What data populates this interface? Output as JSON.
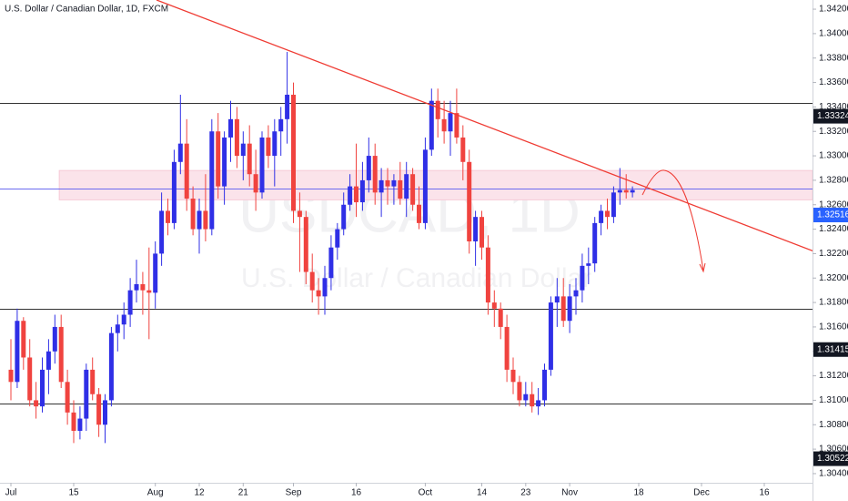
{
  "chart_data": {
    "type": "candlestick",
    "title": "U.S. Dollar / Canadian Dollar, 1D, FXCM",
    "watermark": "USDCAD, 1D",
    "watermark_subtitle": "U.S. Dollar / Canadian Dollar",
    "up_color": "#2f2fe6",
    "down_color": "#f0433f",
    "open": [
      1.3125,
      1.3115,
      1.3165,
      1.3135,
      1.31,
      1.3095,
      1.3125,
      1.314,
      1.316,
      1.3115,
      1.309,
      1.3075,
      1.3085,
      1.3125,
      1.3105,
      1.308,
      1.31,
      1.3155,
      1.3162,
      1.317,
      1.319,
      1.3195,
      1.319,
      1.3188,
      1.322,
      1.3255,
      1.3245,
      1.3295,
      1.331,
      1.3265,
      1.324,
      1.3255,
      1.324,
      1.332,
      1.3275,
      1.3315,
      1.333,
      1.33,
      1.331,
      1.3285,
      1.327,
      1.3315,
      1.33,
      1.332,
      1.333,
      1.335,
      1.3255,
      1.325,
      1.3205,
      1.319,
      1.3185,
      1.32,
      1.3225,
      1.324,
      1.326,
      1.3275,
      1.3262,
      1.328,
      1.33,
      1.327,
      1.328,
      1.3275,
      1.328,
      1.3265,
      1.3285,
      1.326,
      1.3245,
      1.3305,
      1.3345,
      1.333,
      1.332,
      1.3335,
      1.3315,
      1.3295,
      1.323,
      1.325,
      1.3225,
      1.318,
      1.3175,
      1.316,
      1.3125,
      1.3115,
      1.31,
      1.3105,
      1.3095,
      1.31,
      1.3125,
      1.318,
      1.3185,
      1.3165,
      1.3185,
      1.319,
      1.321,
      1.3212,
      1.3245,
      1.3255,
      1.325,
      1.327,
      1.3272,
      1.327
    ],
    "high": [
      1.315,
      1.3175,
      1.3168,
      1.315,
      1.3115,
      1.3135,
      1.315,
      1.317,
      1.317,
      1.3125,
      1.31,
      1.3095,
      1.313,
      1.3135,
      1.311,
      1.3105,
      1.316,
      1.317,
      1.318,
      1.32,
      1.3215,
      1.3205,
      1.3225,
      1.323,
      1.327,
      1.3265,
      1.3305,
      1.335,
      1.333,
      1.3275,
      1.3265,
      1.3285,
      1.333,
      1.3335,
      1.332,
      1.3345,
      1.334,
      1.332,
      1.3325,
      1.3305,
      1.332,
      1.3325,
      1.333,
      1.334,
      1.3385,
      1.336,
      1.327,
      1.3255,
      1.322,
      1.32,
      1.321,
      1.3235,
      1.3245,
      1.327,
      1.3285,
      1.331,
      1.3295,
      1.3315,
      1.331,
      1.329,
      1.329,
      1.3285,
      1.3295,
      1.3295,
      1.329,
      1.3275,
      1.3315,
      1.3355,
      1.3355,
      1.3345,
      1.3345,
      1.3355,
      1.3325,
      1.3305,
      1.3255,
      1.3255,
      1.3235,
      1.319,
      1.318,
      1.317,
      1.3135,
      1.312,
      1.3115,
      1.3115,
      1.311,
      1.313,
      1.3185,
      1.32,
      1.32,
      1.3195,
      1.32,
      1.322,
      1.3225,
      1.325,
      1.326,
      1.3265,
      1.3275,
      1.329,
      1.3285,
      1.3275
    ],
    "low": [
      1.31,
      1.311,
      1.3125,
      1.3095,
      1.3085,
      1.309,
      1.3105,
      1.313,
      1.311,
      1.308,
      1.3065,
      1.3068,
      1.3075,
      1.31,
      1.307,
      1.3065,
      1.3095,
      1.314,
      1.315,
      1.316,
      1.318,
      1.317,
      1.315,
      1.3175,
      1.321,
      1.3235,
      1.324,
      1.3285,
      1.3255,
      1.3235,
      1.322,
      1.323,
      1.3235,
      1.3265,
      1.326,
      1.3295,
      1.329,
      1.328,
      1.3275,
      1.3255,
      1.3265,
      1.329,
      1.3275,
      1.33,
      1.331,
      1.3245,
      1.3205,
      1.3195,
      1.318,
      1.317,
      1.317,
      1.319,
      1.3215,
      1.3235,
      1.3255,
      1.325,
      1.3255,
      1.327,
      1.326,
      1.325,
      1.326,
      1.326,
      1.326,
      1.325,
      1.3255,
      1.324,
      1.324,
      1.33,
      1.3315,
      1.331,
      1.33,
      1.331,
      1.328,
      1.322,
      1.321,
      1.3215,
      1.317,
      1.316,
      1.315,
      1.3115,
      1.3105,
      1.3095,
      1.3095,
      1.309,
      1.3088,
      1.3095,
      1.312,
      1.316,
      1.316,
      1.3155,
      1.317,
      1.318,
      1.3195,
      1.3205,
      1.3235,
      1.324,
      1.3245,
      1.326,
      1.3265,
      1.3266
    ],
    "close": [
      1.3115,
      1.3165,
      1.3135,
      1.31,
      1.3095,
      1.3125,
      1.314,
      1.316,
      1.3115,
      1.309,
      1.3075,
      1.3085,
      1.3125,
      1.3105,
      1.308,
      1.31,
      1.3155,
      1.3162,
      1.317,
      1.319,
      1.3195,
      1.319,
      1.3188,
      1.322,
      1.3255,
      1.3245,
      1.3295,
      1.331,
      1.3265,
      1.324,
      1.3255,
      1.324,
      1.332,
      1.3275,
      1.3315,
      1.333,
      1.33,
      1.331,
      1.3285,
      1.327,
      1.3315,
      1.33,
      1.332,
      1.333,
      1.335,
      1.3255,
      1.325,
      1.3205,
      1.319,
      1.3185,
      1.32,
      1.3225,
      1.324,
      1.326,
      1.3275,
      1.3262,
      1.328,
      1.33,
      1.327,
      1.328,
      1.3275,
      1.328,
      1.3265,
      1.3285,
      1.326,
      1.3245,
      1.3305,
      1.3345,
      1.333,
      1.332,
      1.3335,
      1.3315,
      1.3295,
      1.323,
      1.325,
      1.3225,
      1.318,
      1.3175,
      1.316,
      1.3125,
      1.3115,
      1.31,
      1.3105,
      1.3095,
      1.31,
      1.3125,
      1.318,
      1.3185,
      1.3165,
      1.3185,
      1.319,
      1.321,
      1.3212,
      1.3245,
      1.3255,
      1.325,
      1.327,
      1.3272,
      1.327,
      1.3272
    ],
    "xlim": [
      -1.74,
      127.68
    ],
    "ylim": [
      1.30325,
      1.34275
    ],
    "xticks": [
      {
        "value": 0,
        "label": "Jul"
      },
      {
        "value": 10,
        "label": "15"
      },
      {
        "value": 23,
        "label": "Aug"
      },
      {
        "value": 30,
        "label": "12"
      },
      {
        "value": 37,
        "label": "21"
      },
      {
        "value": 45,
        "label": "Sep"
      },
      {
        "value": 55,
        "label": "16"
      },
      {
        "value": 66,
        "label": "Oct"
      },
      {
        "value": 75,
        "label": "14"
      },
      {
        "value": 82,
        "label": "23"
      },
      {
        "value": 89,
        "label": "Nov"
      },
      {
        "value": 100,
        "label": "18"
      },
      {
        "value": 110,
        "label": "Dec"
      },
      {
        "value": 120,
        "label": "16"
      }
    ],
    "yticks": [
      {
        "value": 1.304,
        "label": "1.30400"
      },
      {
        "value": 1.306,
        "label": "1.30600"
      },
      {
        "value": 1.308,
        "label": "1.30800"
      },
      {
        "value": 1.31,
        "label": "1.31000"
      },
      {
        "value": 1.312,
        "label": "1.31200"
      },
      {
        "value": 1.314,
        "label": "1.31400"
      },
      {
        "value": 1.316,
        "label": "1.31600"
      },
      {
        "value": 1.318,
        "label": "1.31800"
      },
      {
        "value": 1.32,
        "label": "1.32000"
      },
      {
        "value": 1.322,
        "label": "1.32200"
      },
      {
        "value": 1.324,
        "label": "1.32400"
      },
      {
        "value": 1.326,
        "label": "1.32600"
      },
      {
        "value": 1.328,
        "label": "1.32800"
      },
      {
        "value": 1.33,
        "label": "1.33000"
      },
      {
        "value": 1.332,
        "label": "1.33200"
      },
      {
        "value": 1.334,
        "label": "1.33400"
      },
      {
        "value": 1.336,
        "label": "1.33600"
      },
      {
        "value": 1.338,
        "label": "1.33800"
      },
      {
        "value": 1.34,
        "label": "1.34000"
      },
      {
        "value": 1.342,
        "label": "1.34200"
      }
    ],
    "price_markers": [
      {
        "value": 1.33324,
        "color": "#131722"
      },
      {
        "value": 1.32516,
        "color": "#2962ff"
      },
      {
        "value": 1.31415,
        "color": "#131722"
      },
      {
        "value": 1.30522,
        "color": "#131722"
      }
    ],
    "hlines": [
      {
        "value": 1.3343,
        "color": "#333333"
      },
      {
        "value": 1.3175,
        "color": "#333333"
      },
      {
        "value": 1.3097,
        "color": "#333333"
      },
      {
        "value": 1.3273,
        "color": "#6b6bf0"
      }
    ],
    "zone": {
      "low": 1.3264,
      "high": 1.3288,
      "start": 7.7,
      "color": "#fbe3ea"
    },
    "trendline": {
      "x": [
        23.2,
        128.3
      ],
      "y": [
        1.34275,
        1.32211
      ],
      "color": "#ef3b33"
    }
  }
}
